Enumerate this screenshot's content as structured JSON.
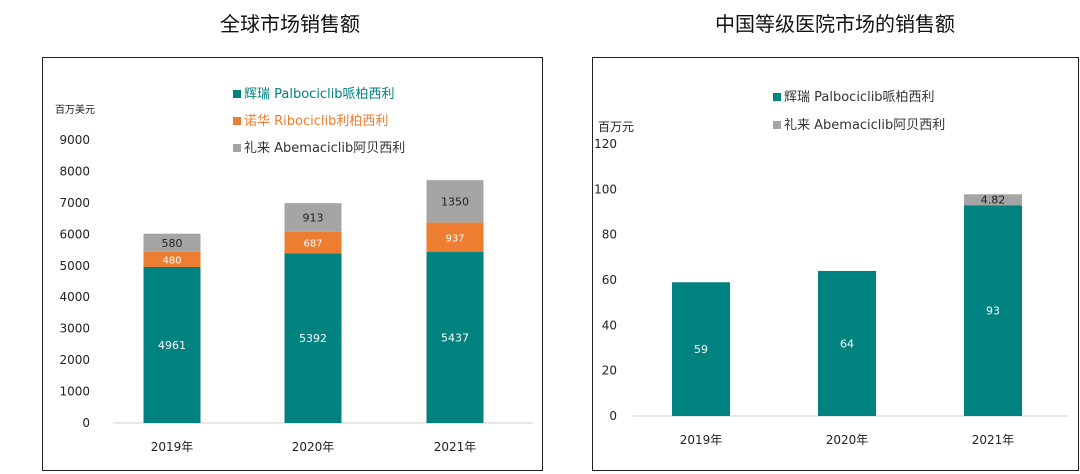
{
  "headings": {
    "left": "全球市场销售额",
    "right": "中国等级医院市场的销售额"
  },
  "colors": {
    "teal": "#008281",
    "orange": "#ED7D31",
    "gray": "#A5A5A5"
  },
  "chart_data": [
    {
      "type": "bar",
      "stacked": true,
      "title": "全球市场销售额",
      "ylabel": "百万美元",
      "ylim": [
        0,
        9000
      ],
      "yticks": [
        0,
        1000,
        2000,
        3000,
        4000,
        5000,
        6000,
        7000,
        8000,
        9000
      ],
      "categories": [
        "2019年",
        "2020年",
        "2021年"
      ],
      "series": [
        {
          "name": "辉瑞 Palbociclib哌柏西利",
          "color": "#008281",
          "values": [
            4961,
            5392,
            5437
          ],
          "labels": [
            "4961",
            "5392",
            "5437"
          ]
        },
        {
          "name": "诺华 Ribociclib利柏西利",
          "color": "#ED7D31",
          "values": [
            480,
            687,
            937
          ],
          "labels": [
            "480",
            "687",
            "937"
          ]
        },
        {
          "name": "礼来 Abemaciclib阿贝西利",
          "color": "#A5A5A5",
          "values": [
            580,
            913,
            1350
          ],
          "labels": [
            "580",
            "913",
            "1350"
          ]
        }
      ],
      "legend_position": "top-center",
      "grid": false
    },
    {
      "type": "bar",
      "stacked": true,
      "title": "中国等级医院市场的销售额",
      "ylabel": "百万元",
      "ylim": [
        0,
        120
      ],
      "yticks": [
        0,
        20,
        40,
        60,
        80,
        100,
        120
      ],
      "categories": [
        "2019年",
        "2020年",
        "2021年"
      ],
      "series": [
        {
          "name": "辉瑞 Palbociclib哌柏西利",
          "color": "#008281",
          "values": [
            59,
            64,
            93
          ],
          "labels": [
            "59",
            "64",
            "93"
          ]
        },
        {
          "name": "礼来 Abemaciclib阿贝西利",
          "color": "#A5A5A5",
          "values": [
            0,
            0,
            4.82
          ],
          "labels": [
            "",
            "",
            "4.82"
          ]
        }
      ],
      "legend_position": "top-center",
      "grid": false
    }
  ]
}
